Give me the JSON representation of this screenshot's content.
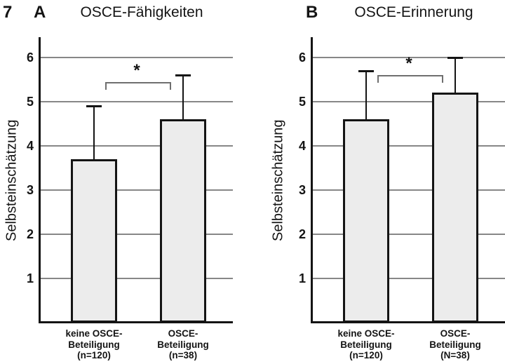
{
  "figure_number": "7",
  "colors": {
    "bar_fill": "#ececec",
    "axis": "#141414",
    "gridline": "#878787",
    "bracket": "#6f6f6f",
    "background": "#ffffff"
  },
  "chart_data": [
    {
      "type": "bar",
      "panel_letter": "A",
      "title": "OSCE-Fähigkeiten",
      "ylabel": "Selbsteinschätzung",
      "ylim": [
        0,
        6.46
      ],
      "yticks": [
        1,
        2,
        3,
        4,
        5,
        6
      ],
      "grid": true,
      "categories": [
        "keine OSCE-Beteiligung (n=120)",
        "OSCE-Beteiligung (n=38)"
      ],
      "cat_lines": [
        [
          "keine OSCE-",
          "Beteiligung",
          "(n=120)"
        ],
        [
          "OSCE-",
          "Beteiligung",
          "(n=38)"
        ]
      ],
      "values": [
        3.7,
        4.6
      ],
      "errors_plus": [
        1.2,
        1.0
      ],
      "significance": {
        "label": "*",
        "between": [
          0,
          1
        ],
        "y_value": 5.45
      }
    },
    {
      "type": "bar",
      "panel_letter": "B",
      "title": "OSCE-Erinnerung",
      "ylabel": "Selbsteinschätzung",
      "ylim": [
        0,
        6.46
      ],
      "yticks": [
        1,
        2,
        3,
        4,
        5,
        6
      ],
      "grid": true,
      "categories": [
        "keine OSCE-Beteiligung (n=120)",
        "OSCE-Beteiligung (N=38)"
      ],
      "cat_lines": [
        [
          "keine OSCE-",
          "Beteiligung",
          "(n=120)"
        ],
        [
          "OSCE-",
          "Beteiligung",
          "(N=38)"
        ]
      ],
      "values": [
        4.6,
        5.2
      ],
      "errors_plus": [
        1.1,
        0.8
      ],
      "significance": {
        "label": "*",
        "between": [
          0,
          1
        ],
        "y_value": 5.6
      }
    }
  ]
}
